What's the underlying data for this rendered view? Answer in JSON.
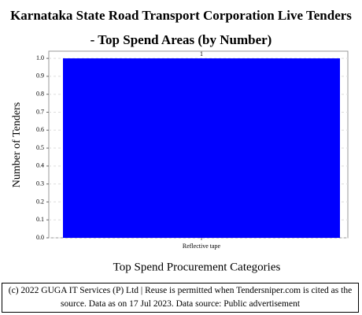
{
  "chart_data": {
    "type": "bar",
    "title": "Karnataka State Road Transport Corporation Live Tenders - Top Spend Areas (by Number)",
    "x_label": "Top Spend Procurement Categories",
    "y_label": "Number of Tenders",
    "categories": [
      "Reflective tape"
    ],
    "values": [
      1
    ],
    "color": "#0000ff",
    "ylim": [
      0,
      1.04
    ],
    "yticks": [
      {
        "value": 0,
        "label": "0.0"
      },
      {
        "value": 0.1,
        "label": "0.1"
      },
      {
        "value": 0.2,
        "label": "0.2"
      },
      {
        "value": 0.3,
        "label": "0.3"
      },
      {
        "value": 0.4,
        "label": "0.4"
      },
      {
        "value": 0.5,
        "label": "0.5"
      },
      {
        "value": 0.6,
        "label": "0.6"
      },
      {
        "value": 0.7,
        "label": "0.7"
      },
      {
        "value": 0.8,
        "label": "0.8"
      },
      {
        "value": 0.9,
        "label": "0.9"
      },
      {
        "value": 1,
        "label": "1.0"
      }
    ],
    "grid": true,
    "footer": "(c) 2022 GUGA IT Services (P) Ltd | Reuse is permitted when Tendersniper.com is cited as the source. Data as on 17 Jul 2023. Data source: Public advertisement"
  }
}
